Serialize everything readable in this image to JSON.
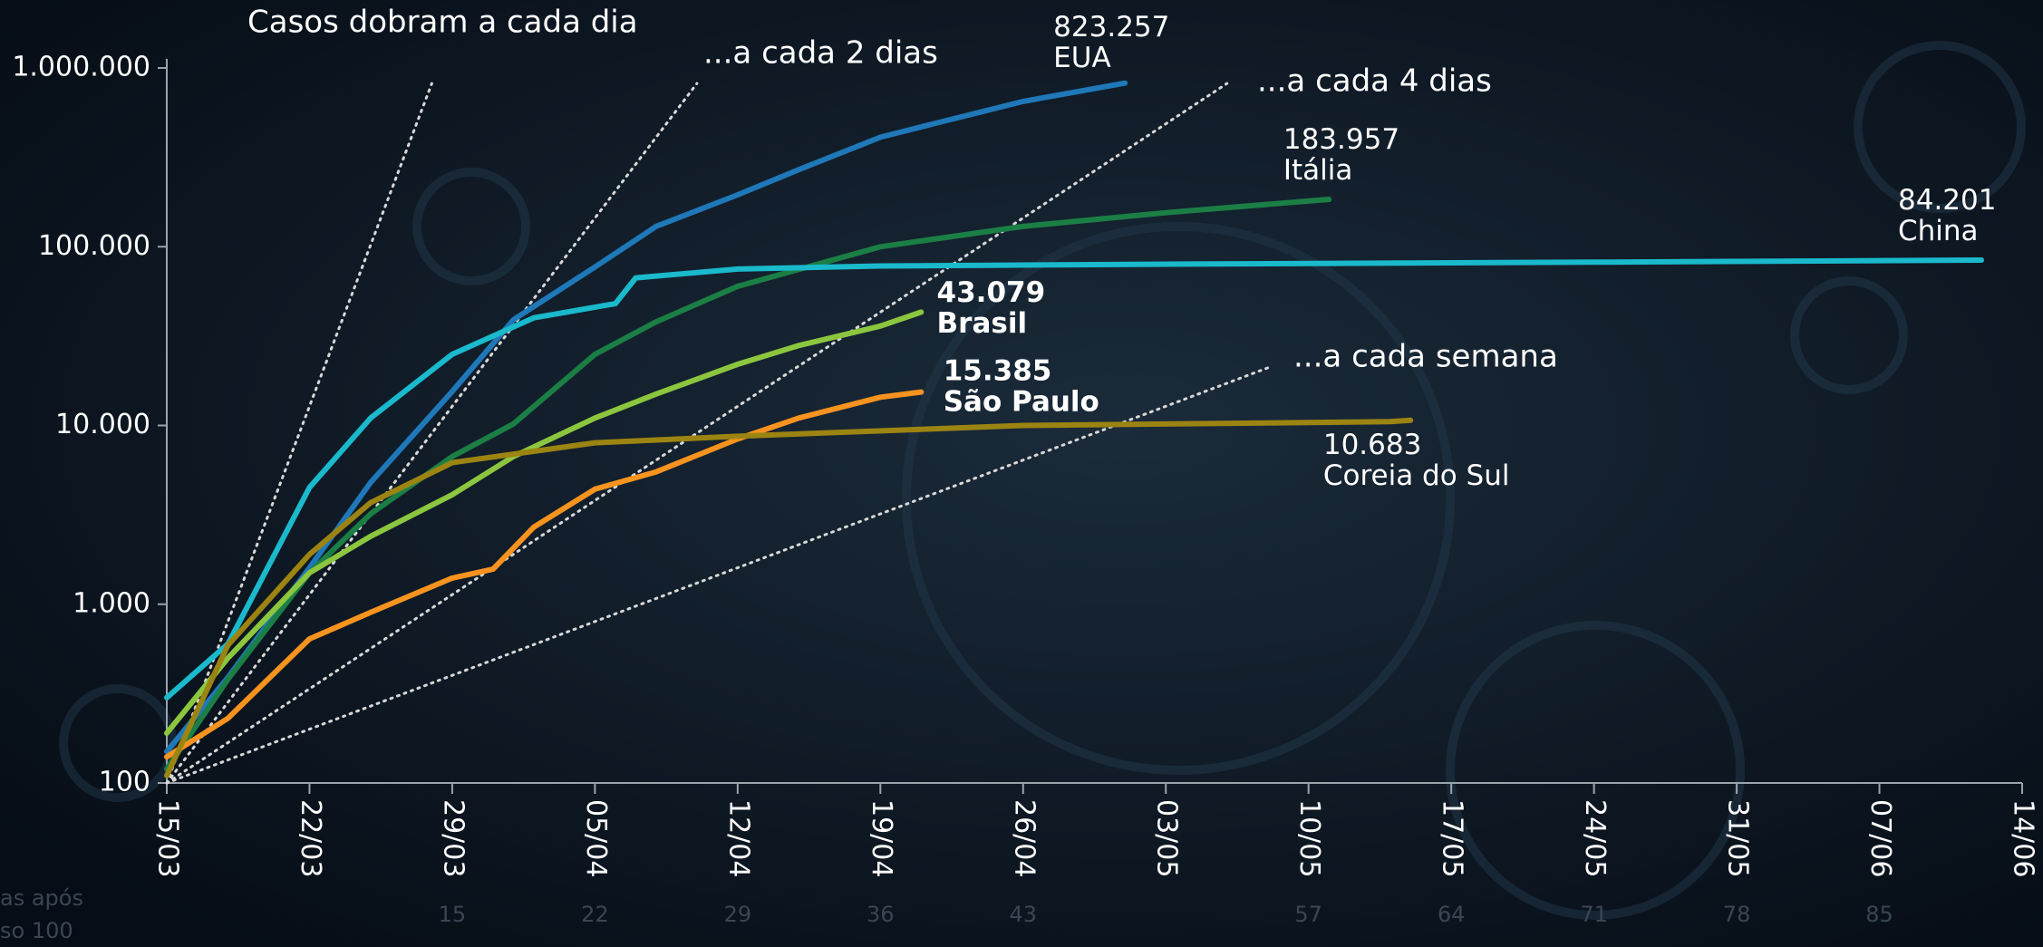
{
  "chart_data": {
    "type": "line",
    "log_scale": true,
    "xlim": [
      0,
      91
    ],
    "ylim": [
      100,
      1000000
    ],
    "yticks": [
      {
        "value": 100,
        "label": "100"
      },
      {
        "value": 1000,
        "label": "1.000"
      },
      {
        "value": 10000,
        "label": "10.000"
      },
      {
        "value": 100000,
        "label": "100.000"
      },
      {
        "value": 1000000,
        "label": "1.000.000"
      }
    ],
    "xticks": [
      {
        "value": 0,
        "label": "15/03"
      },
      {
        "value": 7,
        "label": "22/03"
      },
      {
        "value": 14,
        "label": "29/03"
      },
      {
        "value": 21,
        "label": "05/04"
      },
      {
        "value": 28,
        "label": "12/04"
      },
      {
        "value": 35,
        "label": "19/04"
      },
      {
        "value": 42,
        "label": "26/04"
      },
      {
        "value": 49,
        "label": "03/05"
      },
      {
        "value": 56,
        "label": "10/05"
      },
      {
        "value": 63,
        "label": "17/05"
      },
      {
        "value": 70,
        "label": "24/05"
      },
      {
        "value": 77,
        "label": "31/05"
      },
      {
        "value": 84,
        "label": "07/06"
      },
      {
        "value": 91,
        "label": "14/06"
      }
    ],
    "x2ticks": [
      {
        "value": 14,
        "label": "15"
      },
      {
        "value": 21,
        "label": "22"
      },
      {
        "value": 28,
        "label": "29"
      },
      {
        "value": 35,
        "label": "36"
      },
      {
        "value": 42,
        "label": "43"
      },
      {
        "value": 56,
        "label": "57"
      },
      {
        "value": 63,
        "label": "64"
      },
      {
        "value": 70,
        "label": "71"
      },
      {
        "value": 77,
        "label": "78"
      },
      {
        "value": 84,
        "label": "85"
      }
    ],
    "x2_label_lines": [
      "as após",
      "so 100"
    ],
    "series": [
      {
        "name": "EUA",
        "color": "#1f78b8",
        "x": [
          0,
          3,
          7,
          10,
          14,
          17,
          21,
          24,
          28,
          31,
          35,
          38,
          42,
          47
        ],
        "values": [
          150,
          390,
          1600,
          4800,
          15500,
          39000,
          77000,
          130000,
          195000,
          270000,
          410000,
          500000,
          650000,
          823257
        ],
        "value_labels": [
          null,
          null,
          null,
          null,
          null,
          null,
          null,
          null,
          null,
          null,
          null,
          null,
          null,
          "823.257"
        ],
        "bold": false
      },
      {
        "name": "Itália",
        "color": "#1b7f45",
        "x": [
          0,
          3,
          7,
          10,
          14,
          17,
          21,
          24,
          28,
          35,
          42,
          49,
          57
        ],
        "values": [
          120,
          380,
          1500,
          3200,
          6700,
          10200,
          25000,
          38000,
          60000,
          100000,
          130000,
          155000,
          183957
        ],
        "value_labels": [
          null,
          null,
          null,
          null,
          null,
          null,
          null,
          null,
          null,
          null,
          null,
          null,
          "183.957"
        ],
        "bold": false
      },
      {
        "name": "China",
        "color": "#1ab9cc",
        "x": [
          0,
          3,
          7,
          10,
          14,
          18,
          22,
          23,
          28,
          35,
          50,
          70,
          89
        ],
        "values": [
          300,
          600,
          4500,
          11000,
          25000,
          40000,
          48000,
          67000,
          75000,
          78000,
          80000,
          82000,
          84201
        ],
        "value_labels": [
          null,
          null,
          null,
          null,
          null,
          null,
          null,
          null,
          null,
          null,
          null,
          null,
          "84.201"
        ],
        "bold": false
      },
      {
        "name": "Brasil",
        "color": "#8cc63e",
        "x": [
          0,
          3,
          7,
          10,
          14,
          17,
          21,
          24,
          28,
          31,
          35,
          37
        ],
        "values": [
          190,
          500,
          1500,
          2400,
          4100,
          6700,
          11000,
          15000,
          22000,
          28000,
          36000,
          43079
        ],
        "value_labels": [
          null,
          null,
          null,
          null,
          null,
          null,
          null,
          null,
          null,
          null,
          null,
          "43.079"
        ],
        "bold": true
      },
      {
        "name": "São Paulo",
        "color": "#f7931e",
        "x": [
          0,
          3,
          7,
          10,
          14,
          16,
          18,
          21,
          24,
          28,
          31,
          35,
          37
        ],
        "values": [
          140,
          230,
          640,
          900,
          1400,
          1570,
          2700,
          4400,
          5500,
          8400,
          11000,
          14400,
          15385
        ],
        "value_labels": [
          null,
          null,
          null,
          null,
          null,
          null,
          null,
          null,
          null,
          null,
          null,
          null,
          "15.385"
        ],
        "bold": true
      },
      {
        "name": "Coreia do Sul",
        "color": "#9c8412",
        "x": [
          0,
          3,
          7,
          10,
          14,
          21,
          28,
          42,
          60,
          61
        ],
        "values": [
          110,
          590,
          1900,
          3700,
          6200,
          8000,
          8700,
          10000,
          10500,
          10683
        ],
        "value_labels": [
          null,
          null,
          null,
          null,
          null,
          null,
          null,
          null,
          null,
          "10.683"
        ],
        "bold": false
      }
    ],
    "reference_lines": [
      {
        "label": "Casos dobram a cada dia",
        "x": [
          0,
          13
        ],
        "values": [
          100,
          819200
        ]
      },
      {
        "label": "...a cada 2 dias",
        "x": [
          0,
          26
        ],
        "values": [
          100,
          819200
        ]
      },
      {
        "label": "...a cada 4 dias",
        "x": [
          0,
          52
        ],
        "values": [
          100,
          819200
        ]
      },
      {
        "label": "...a cada semana",
        "x": [
          0,
          54
        ],
        "values": [
          100,
          21000
        ]
      }
    ]
  }
}
